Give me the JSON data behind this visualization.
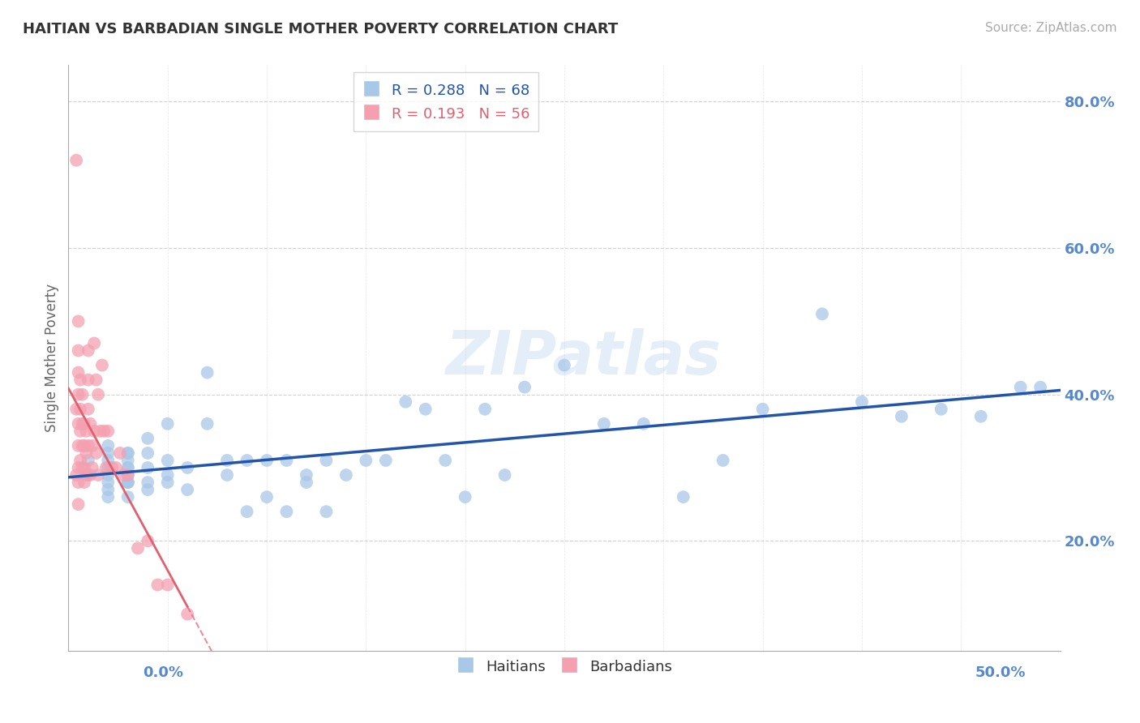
{
  "title": "HAITIAN VS BARBADIAN SINGLE MOTHER POVERTY CORRELATION CHART",
  "source": "Source: ZipAtlas.com",
  "ylabel": "Single Mother Poverty",
  "right_yticks": [
    20.0,
    40.0,
    60.0,
    80.0
  ],
  "xmin": 0.0,
  "xmax": 0.5,
  "ymin": 0.05,
  "ymax": 0.85,
  "haitian_R": 0.288,
  "haitian_N": 68,
  "barbadian_R": 0.193,
  "barbadian_N": 56,
  "haitian_color": "#a8c8e8",
  "barbadian_color": "#f4a0b0",
  "haitian_line_color": "#2255aa",
  "barbadian_line_color": "#e06070",
  "background_color": "#ffffff",
  "grid_color": "#cccccc",
  "axis_label_color": "#5588cc",
  "watermark": "ZIPatlas",
  "haitian_x": [
    0.01,
    0.01,
    0.02,
    0.02,
    0.02,
    0.02,
    0.02,
    0.02,
    0.02,
    0.02,
    0.03,
    0.03,
    0.03,
    0.03,
    0.03,
    0.03,
    0.03,
    0.03,
    0.03,
    0.03,
    0.04,
    0.04,
    0.04,
    0.04,
    0.04,
    0.05,
    0.05,
    0.05,
    0.05,
    0.06,
    0.06,
    0.07,
    0.07,
    0.08,
    0.08,
    0.09,
    0.09,
    0.1,
    0.1,
    0.11,
    0.11,
    0.12,
    0.12,
    0.13,
    0.13,
    0.14,
    0.15,
    0.16,
    0.17,
    0.18,
    0.19,
    0.2,
    0.21,
    0.22,
    0.23,
    0.25,
    0.27,
    0.29,
    0.31,
    0.33,
    0.35,
    0.38,
    0.4,
    0.42,
    0.44,
    0.46,
    0.48,
    0.49
  ],
  "haitian_y": [
    0.31,
    0.29,
    0.31,
    0.29,
    0.33,
    0.27,
    0.3,
    0.28,
    0.32,
    0.26,
    0.3,
    0.28,
    0.32,
    0.26,
    0.29,
    0.31,
    0.28,
    0.32,
    0.28,
    0.3,
    0.27,
    0.3,
    0.28,
    0.32,
    0.34,
    0.29,
    0.31,
    0.36,
    0.28,
    0.27,
    0.3,
    0.43,
    0.36,
    0.29,
    0.31,
    0.31,
    0.24,
    0.26,
    0.31,
    0.31,
    0.24,
    0.29,
    0.28,
    0.24,
    0.31,
    0.29,
    0.31,
    0.31,
    0.39,
    0.38,
    0.31,
    0.26,
    0.38,
    0.29,
    0.41,
    0.44,
    0.36,
    0.36,
    0.26,
    0.31,
    0.38,
    0.51,
    0.39,
    0.37,
    0.38,
    0.37,
    0.41,
    0.41
  ],
  "barbadian_x": [
    0.004,
    0.004,
    0.004,
    0.005,
    0.005,
    0.005,
    0.005,
    0.005,
    0.005,
    0.005,
    0.005,
    0.005,
    0.006,
    0.006,
    0.006,
    0.006,
    0.007,
    0.007,
    0.007,
    0.007,
    0.008,
    0.008,
    0.008,
    0.008,
    0.009,
    0.009,
    0.009,
    0.01,
    0.01,
    0.01,
    0.01,
    0.011,
    0.011,
    0.012,
    0.012,
    0.013,
    0.013,
    0.014,
    0.014,
    0.015,
    0.015,
    0.016,
    0.017,
    0.018,
    0.019,
    0.02,
    0.022,
    0.024,
    0.026,
    0.028,
    0.03,
    0.035,
    0.04,
    0.045,
    0.05,
    0.06
  ],
  "barbadian_y": [
    0.72,
    0.38,
    0.29,
    0.5,
    0.46,
    0.43,
    0.4,
    0.36,
    0.33,
    0.3,
    0.28,
    0.25,
    0.42,
    0.38,
    0.35,
    0.31,
    0.4,
    0.36,
    0.33,
    0.3,
    0.36,
    0.33,
    0.3,
    0.28,
    0.35,
    0.32,
    0.29,
    0.46,
    0.42,
    0.38,
    0.33,
    0.36,
    0.29,
    0.33,
    0.3,
    0.47,
    0.35,
    0.42,
    0.32,
    0.4,
    0.29,
    0.35,
    0.44,
    0.35,
    0.3,
    0.35,
    0.3,
    0.3,
    0.32,
    0.29,
    0.29,
    0.19,
    0.2,
    0.14,
    0.14,
    0.1
  ]
}
